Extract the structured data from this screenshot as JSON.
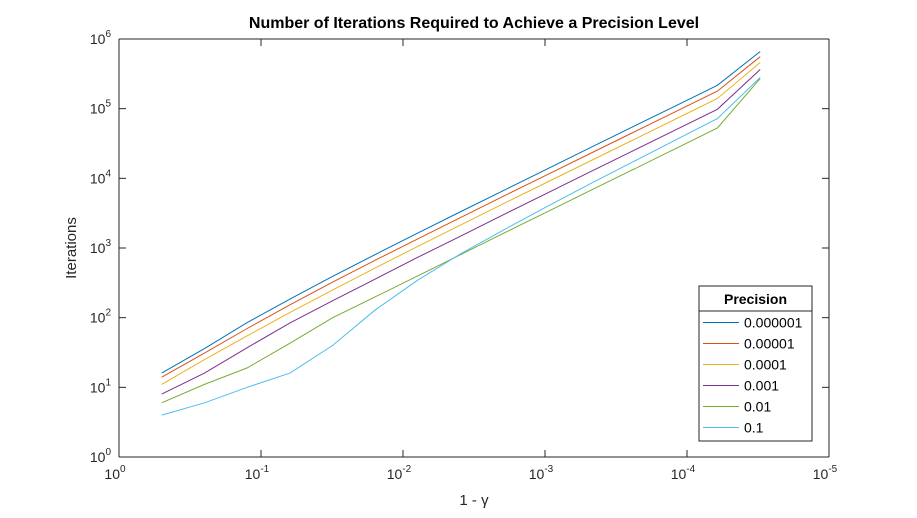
{
  "chart_data": {
    "type": "line",
    "title": "Number of Iterations Required to Achieve a Precision Level",
    "xlabel": "1 - γ",
    "ylabel": "Iterations",
    "xscale": "log",
    "yscale": "log",
    "x_reversed": true,
    "xlim": [
      1e-05,
      1
    ],
    "ylim": [
      1,
      1000000
    ],
    "x_ticks": [
      {
        "base": "10",
        "exp": "0",
        "value": 1
      },
      {
        "base": "10",
        "exp": "-1",
        "value": 0.1
      },
      {
        "base": "10",
        "exp": "-2",
        "value": 0.01
      },
      {
        "base": "10",
        "exp": "-3",
        "value": 0.001
      },
      {
        "base": "10",
        "exp": "-4",
        "value": 0.0001
      },
      {
        "base": "10",
        "exp": "-5",
        "value": 1e-05
      }
    ],
    "y_ticks": [
      {
        "base": "10",
        "exp": "0",
        "value": 1
      },
      {
        "base": "10",
        "exp": "1",
        "value": 10
      },
      {
        "base": "10",
        "exp": "2",
        "value": 100
      },
      {
        "base": "10",
        "exp": "3",
        "value": 1000
      },
      {
        "base": "10",
        "exp": "4",
        "value": 10000
      },
      {
        "base": "10",
        "exp": "5",
        "value": 100000
      },
      {
        "base": "10",
        "exp": "6",
        "value": 1000000
      }
    ],
    "legend_title": "Precision",
    "legend_position": "bottom-right",
    "grid": false,
    "x": [
      0.5,
      0.25,
      0.125,
      0.0625,
      0.03125,
      0.015625,
      0.0078125,
      0.00390625,
      0.001953125,
      0.0009765625,
      0.00048828125,
      0.000244140625,
      0.0001220703125,
      6.103515625e-05,
      3.0517578125e-05
    ],
    "series": [
      {
        "name": "0.000001",
        "color": "#0072BD",
        "values": [
          16,
          36,
          85,
          185,
          393,
          810,
          1650,
          3340,
          6720,
          13490,
          27040,
          54120,
          108300,
          216600,
          662000
        ]
      },
      {
        "name": "0.00001",
        "color": "#D95319",
        "values": [
          14,
          31,
          70,
          153,
          324,
          670,
          1360,
          2760,
          5550,
          11130,
          22320,
          44680,
          89400,
          178800,
          557000
        ]
      },
      {
        "name": "0.0001",
        "color": "#EDB120",
        "values": [
          11,
          25,
          55,
          119,
          250,
          520,
          1060,
          2150,
          4340,
          8710,
          17460,
          34970,
          70000,
          140100,
          460000
        ]
      },
      {
        "name": "0.001",
        "color": "#7E2F8E",
        "values": [
          8,
          16,
          37,
          84,
          175,
          360,
          740,
          1490,
          3020,
          6070,
          12190,
          24430,
          48900,
          97900,
          365000
        ]
      },
      {
        "name": "0.01",
        "color": "#77AC30",
        "values": [
          6,
          11,
          19,
          43,
          100,
          200,
          400,
          810,
          1630,
          3270,
          6560,
          13140,
          26300,
          52700,
          270000
        ]
      },
      {
        "name": "0.1",
        "color": "#4DBEEE",
        "values": [
          4,
          6,
          10,
          16,
          40,
          130,
          350,
          830,
          1820,
          3900,
          8200,
          17000,
          35000,
          72000,
          280000
        ]
      }
    ]
  }
}
